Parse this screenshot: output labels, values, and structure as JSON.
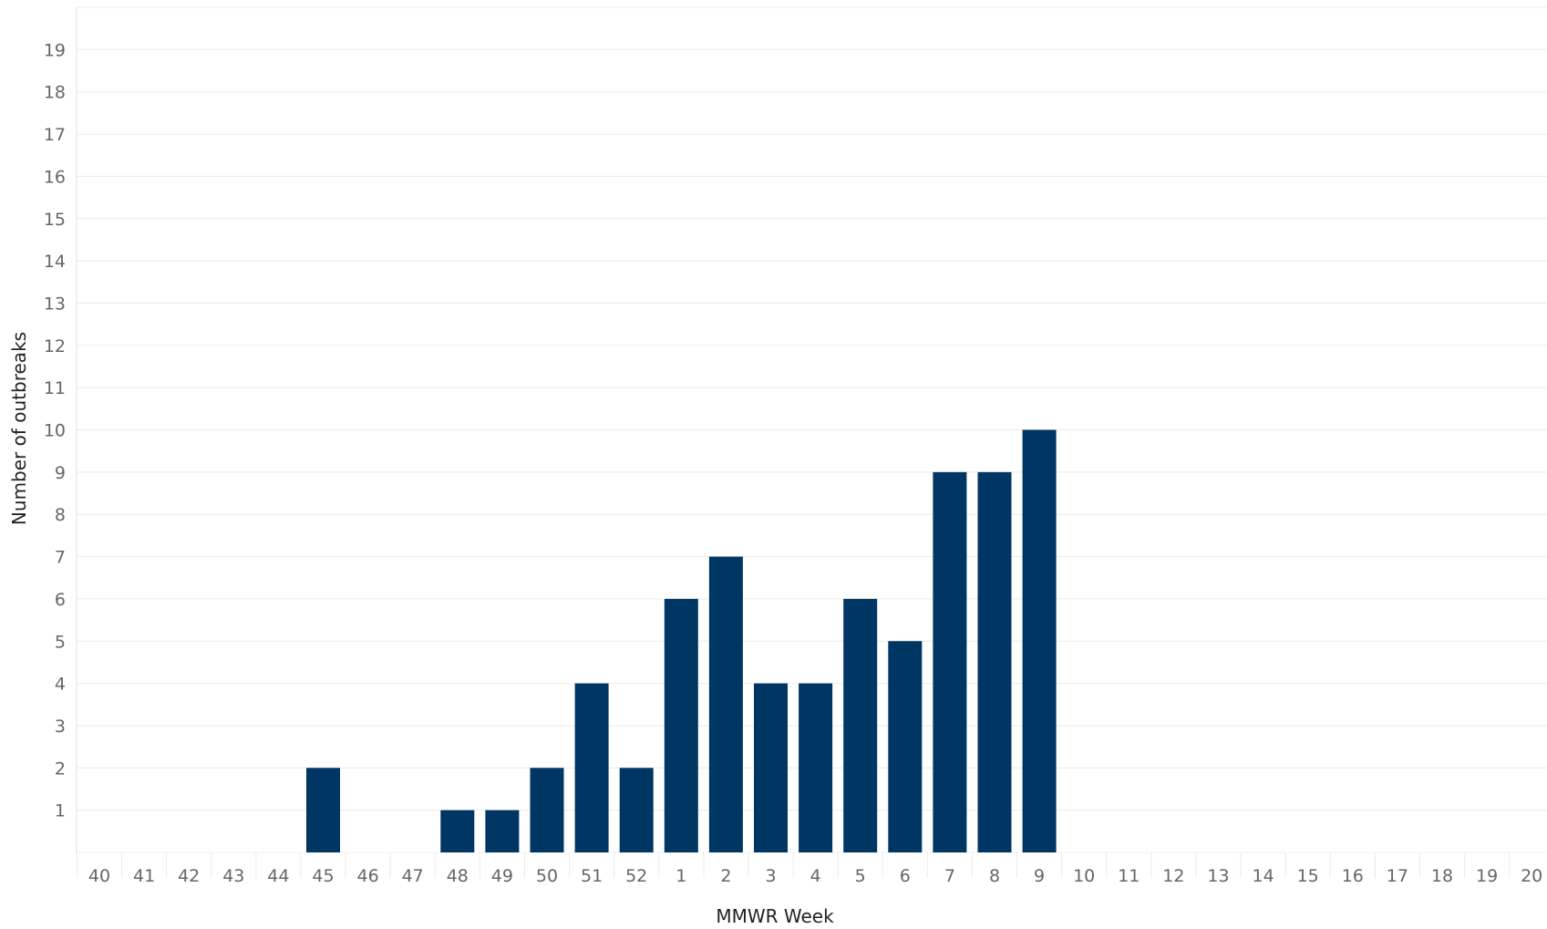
{
  "chart_data": {
    "type": "bar",
    "xlabel": "MMWR Week",
    "ylabel": "Number of outbreaks",
    "categories": [
      "40",
      "41",
      "42",
      "43",
      "44",
      "45",
      "46",
      "47",
      "48",
      "49",
      "50",
      "51",
      "52",
      "1",
      "2",
      "3",
      "4",
      "5",
      "6",
      "7",
      "8",
      "9",
      "10",
      "11",
      "12",
      "13",
      "14",
      "15",
      "16",
      "17",
      "18",
      "19",
      "20"
    ],
    "values": [
      0,
      0,
      0,
      0,
      0,
      2,
      0,
      0,
      1,
      1,
      2,
      4,
      2,
      6,
      7,
      4,
      4,
      6,
      5,
      9,
      9,
      10,
      0,
      0,
      0,
      0,
      0,
      0,
      0,
      0,
      0,
      0,
      0
    ],
    "ylim": [
      0,
      20
    ],
    "yticks": [
      1,
      2,
      3,
      4,
      5,
      6,
      7,
      8,
      9,
      10,
      11,
      12,
      13,
      14,
      15,
      16,
      17,
      18,
      19
    ],
    "grid": true,
    "legend": "none",
    "colors": {
      "bar": "#003663",
      "grid": "#ebebeb",
      "tick_text": "#666666",
      "axis_title": "#222222"
    }
  }
}
